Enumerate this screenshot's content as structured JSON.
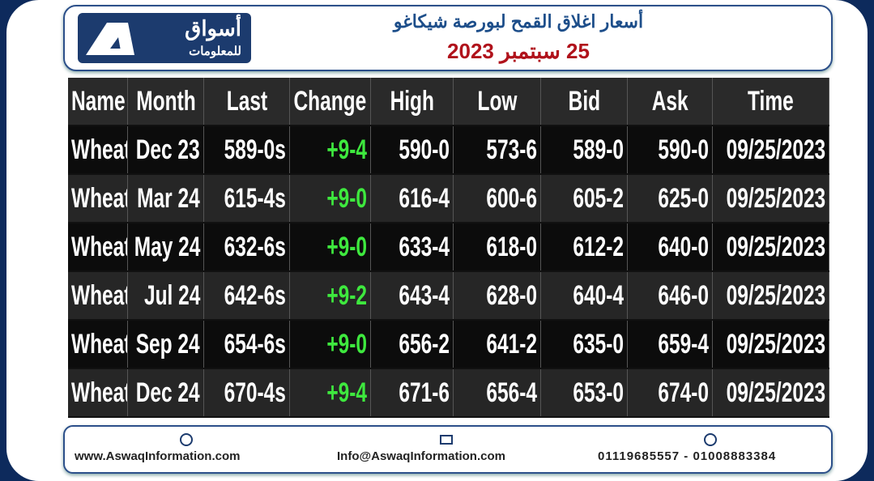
{
  "header": {
    "logo": {
      "name": "أسواق",
      "subtitle": "للمعلومات"
    },
    "title": "أسعار اغلاق القمح لبورصة شيكاغو",
    "date": "25 سبتمبر 2023"
  },
  "table": {
    "columns": [
      "Name",
      "Month",
      "Last",
      "Change",
      "High",
      "Low",
      "Bid",
      "Ask",
      "Time"
    ],
    "rows": [
      [
        "Wheat",
        "Dec 23",
        "589-0s",
        "+9-4",
        "590-0",
        "573-6",
        "589-0",
        "590-0",
        "09/25/2023"
      ],
      [
        "Wheat",
        "Mar 24",
        "615-4s",
        "+9-0",
        "616-4",
        "600-6",
        "605-2",
        "625-0",
        "09/25/2023"
      ],
      [
        "Wheat",
        "May 24",
        "632-6s",
        "+9-0",
        "633-4",
        "618-0",
        "612-2",
        "640-0",
        "09/25/2023"
      ],
      [
        "Wheat",
        "Jul 24",
        "642-6s",
        "+9-2",
        "643-4",
        "628-0",
        "640-4",
        "646-0",
        "09/25/2023"
      ],
      [
        "Wheat",
        "Sep 24",
        "654-6s",
        "+9-0",
        "656-2",
        "641-2",
        "635-0",
        "659-4",
        "09/25/2023"
      ],
      [
        "Wheat",
        "Dec 24",
        "670-4s",
        "+9-4",
        "671-6",
        "656-4",
        "653-0",
        "674-0",
        "09/25/2023"
      ]
    ]
  },
  "footer": {
    "website": "www.AswaqInformation.com",
    "email": "Info@AswaqInformation.com",
    "phones": "01119685557 - 01008883384"
  }
}
